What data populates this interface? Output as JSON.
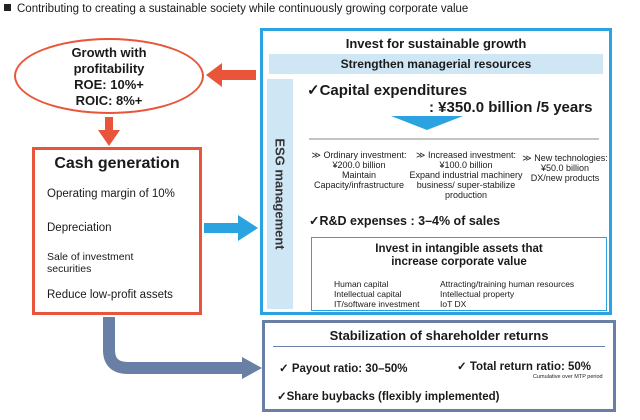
{
  "header": "Contributing to creating a sustainable society while continuously growing corporate value",
  "growth": {
    "title_1": "Growth with",
    "title_2": "profitability",
    "roe": "ROE: 10%+",
    "roic": "ROIC: 8%+"
  },
  "cash": {
    "title": "Cash generation",
    "items": [
      "Operating margin of 10%",
      "Depreciation",
      "Sale of investment",
      "securities",
      "Reduce low-profit assets"
    ]
  },
  "invest": {
    "title": "Invest for sustainable growth",
    "subtitle": "Strengthen managerial resources",
    "esg": "ESG management",
    "capex_title": "✓Capital expenditures",
    "capex_amount": ": ¥350.0 billion /5 years",
    "columns": [
      {
        "head": "≫ Ordinary investment:",
        "lines": [
          "¥200.0 billion",
          "Maintain",
          "Capacity/infrastructure"
        ]
      },
      {
        "head": "≫ Increased investment:",
        "lines": [
          "¥100.0 billion",
          "Expand  industrial machinery",
          "business/ super-stabilize",
          "production"
        ]
      },
      {
        "head": "≫ New technologies:",
        "lines": [
          "¥50.0 billion",
          "DX/new products"
        ]
      }
    ],
    "rnd": "✓R&D expenses : 3–4% of sales",
    "intangible": {
      "title_1": "Invest in intangible assets that",
      "title_2": "increase corporate value",
      "rows": [
        [
          "Human capital",
          "Attracting/training human resources"
        ],
        [
          "Intellectual capital",
          "Intellectual property"
        ],
        [
          "IT/software investment",
          "IoT    DX"
        ]
      ]
    }
  },
  "returns": {
    "title": "Stabilization of shareholder returns",
    "payout": "✓ Payout ratio: 30–50%",
    "total": "✓ Total return ratio: 50%",
    "total_note": "Cumulative over MTP period",
    "buyback": "✓Share buybacks (flexibly implemented)"
  },
  "colors": {
    "red": "#e8553a",
    "blue": "#2aa3e0",
    "slate": "#6a7fa6",
    "light_blue": "#cfe6f5"
  }
}
